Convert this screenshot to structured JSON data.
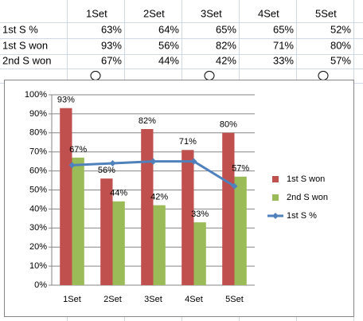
{
  "table": {
    "columns": [
      "1Set",
      "2Set",
      "3Set",
      "4Set",
      "5Set"
    ],
    "rows": [
      {
        "label": "1st S %",
        "cells": [
          "63%",
          "64%",
          "65%",
          "65%",
          "52%"
        ]
      },
      {
        "label": "1st S won",
        "cells": [
          "93%",
          "56%",
          "82%",
          "71%",
          "80%"
        ]
      },
      {
        "label": "2nd S won",
        "cells": [
          "67%",
          "44%",
          "42%",
          "33%",
          "57%"
        ]
      }
    ]
  },
  "chart_data": {
    "type": "bar",
    "categories": [
      "1Set",
      "2Set",
      "3Set",
      "4Set",
      "5Set"
    ],
    "series": [
      {
        "name": "1st S won",
        "type": "bar",
        "color": "#c0504d",
        "values": [
          93,
          56,
          82,
          71,
          80
        ],
        "value_labels": [
          "93%",
          "56%",
          "82%",
          "71%",
          "80%"
        ]
      },
      {
        "name": "2nd S won",
        "type": "bar",
        "color": "#9bbb59",
        "values": [
          67,
          44,
          42,
          33,
          57
        ],
        "value_labels": [
          "67%",
          "44%",
          "42%",
          "33%",
          "57%"
        ]
      },
      {
        "name": "1st S %",
        "type": "line",
        "color": "#4f81bd",
        "values": [
          63,
          64,
          65,
          65,
          52
        ]
      }
    ],
    "ylim": [
      0,
      100
    ],
    "yticks": [
      {
        "value": 0,
        "label": "0%"
      },
      {
        "value": 10,
        "label": "10%"
      },
      {
        "value": 20,
        "label": "20%"
      },
      {
        "value": 30,
        "label": "30%"
      },
      {
        "value": 40,
        "label": "40%"
      },
      {
        "value": 50,
        "label": "50%"
      },
      {
        "value": 60,
        "label": "60%"
      },
      {
        "value": 70,
        "label": "70%"
      },
      {
        "value": 80,
        "label": "80%"
      },
      {
        "value": 90,
        "label": "90%"
      },
      {
        "value": 100,
        "label": "100%"
      }
    ],
    "grid": true,
    "legend": "right"
  }
}
